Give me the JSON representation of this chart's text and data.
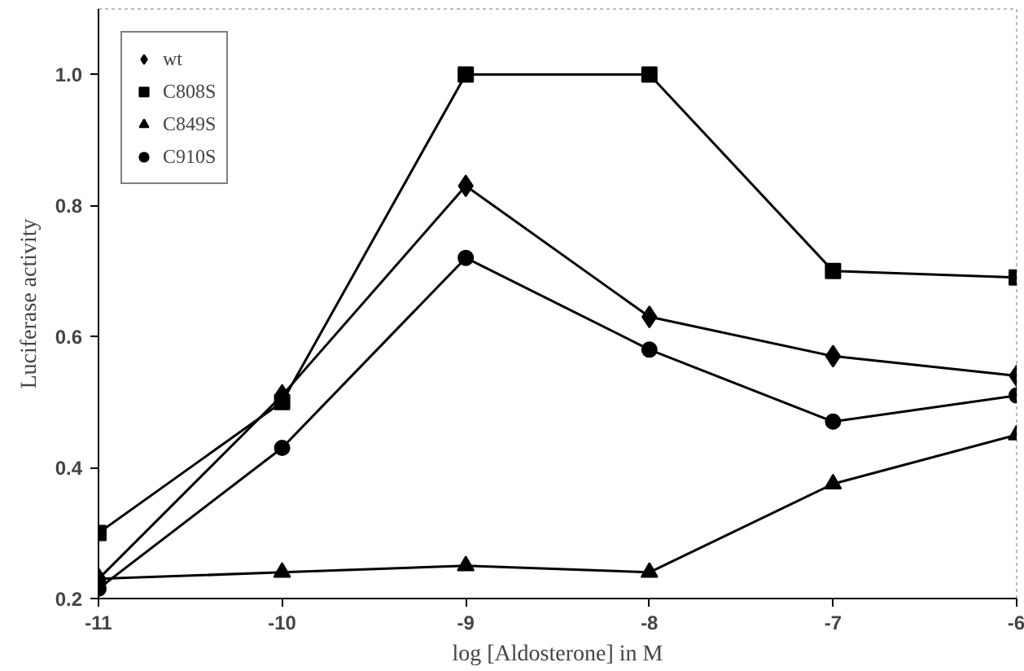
{
  "chart_data": {
    "type": "line",
    "xlabel": "log [Aldosterone] in M",
    "ylabel": "Luciferase activity",
    "x": [
      -11,
      -10,
      -9,
      -8,
      -7,
      -6
    ],
    "xlim": [
      -11,
      -6
    ],
    "xticks": [
      -11,
      -10,
      -9,
      -8,
      -7,
      -6
    ],
    "ylim": [
      0.2,
      1.1
    ],
    "yticks": [
      {
        "value": 0.2,
        "label": "0.2"
      },
      {
        "value": 0.4,
        "label": "0.4"
      },
      {
        "value": 0.6,
        "label": "0.6"
      },
      {
        "value": 0.8,
        "label": "0.8"
      },
      {
        "value": 1.0,
        "label": "1.0"
      }
    ],
    "grid": false,
    "legend": "top left",
    "line_style": "solid",
    "series": [
      {
        "name": "wt",
        "color": "#000000",
        "marker": "diamond",
        "values": [
          0.23,
          0.51,
          0.83,
          0.63,
          0.57,
          0.54
        ]
      },
      {
        "name": "C808S",
        "color": "#000000",
        "marker": "square",
        "values": [
          0.3,
          0.5,
          1.0,
          1.0,
          0.7,
          0.69
        ]
      },
      {
        "name": "C849S",
        "color": "#000000",
        "marker": "triangle",
        "values": [
          0.23,
          0.24,
          0.25,
          0.24,
          0.375,
          0.45
        ]
      },
      {
        "name": "C910S",
        "color": "#000000",
        "marker": "circle",
        "values": [
          0.215,
          0.43,
          0.72,
          0.58,
          0.47,
          0.51
        ]
      }
    ]
  }
}
